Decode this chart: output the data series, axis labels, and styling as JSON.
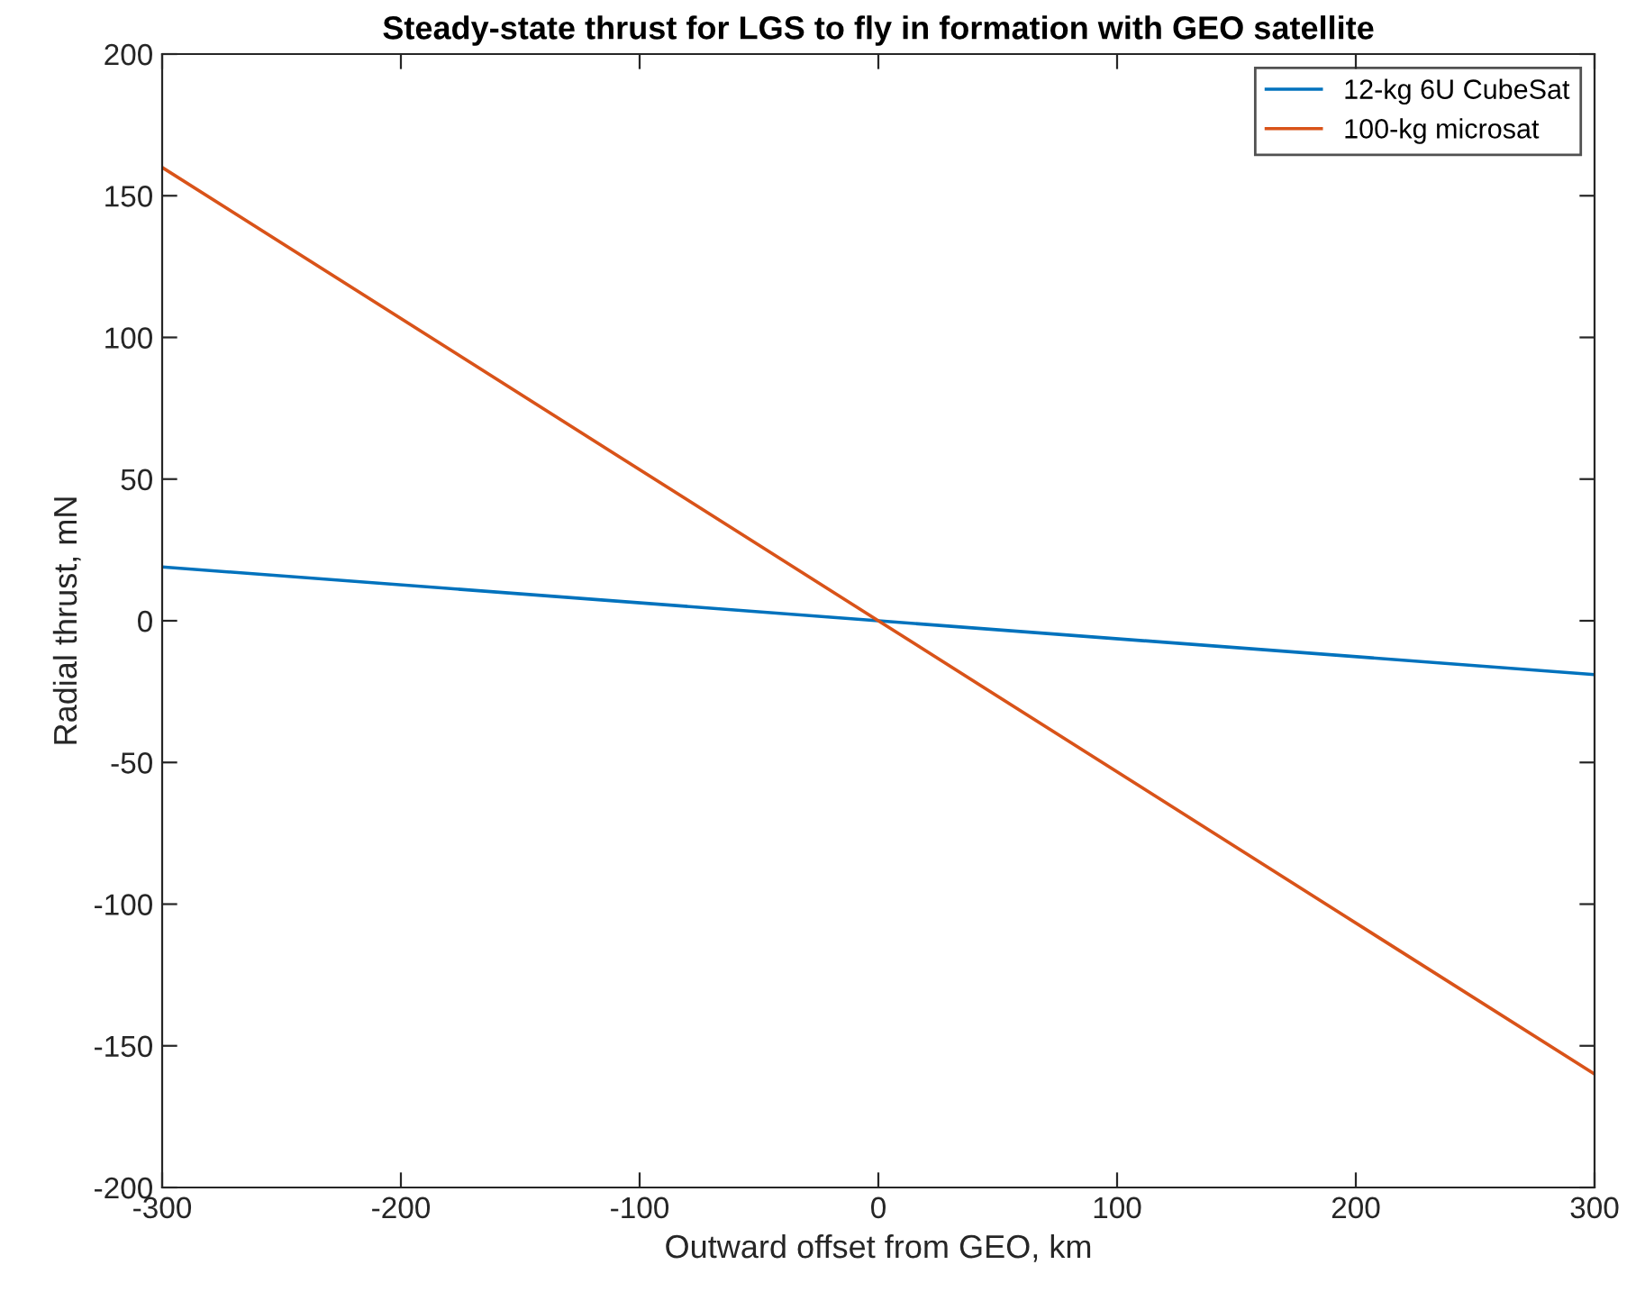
{
  "chart_data": {
    "type": "line",
    "title": "Steady-state thrust for LGS to fly in formation with GEO satellite",
    "xlabel": "Outward offset from GEO, km",
    "ylabel": "Radial thrust, mN",
    "x": [
      -300,
      0,
      300
    ],
    "series": [
      {
        "name": "12-kg 6U CubeSat",
        "color": "#0072bd",
        "values": [
          19,
          0,
          -19
        ]
      },
      {
        "name": "100-kg microsat",
        "color": "#d95319",
        "values": [
          160,
          0,
          -160
        ]
      }
    ],
    "xlim": [
      -300,
      300
    ],
    "ylim": [
      -200,
      200
    ],
    "xticks": [
      -300,
      -200,
      -100,
      0,
      100,
      200,
      300
    ],
    "yticks": [
      -200,
      -150,
      -100,
      -50,
      0,
      50,
      100,
      150,
      200
    ],
    "grid": false,
    "legend": "top right"
  }
}
